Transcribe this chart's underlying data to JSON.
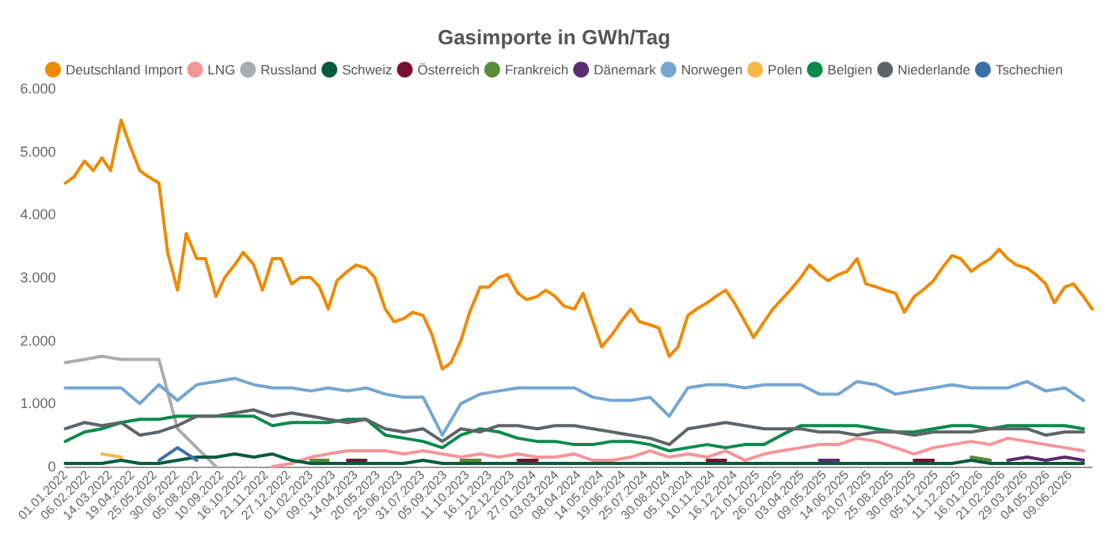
{
  "chart_data": {
    "type": "line",
    "title": "Gasimporte in GWh/Tag",
    "legend": "top",
    "grid": false,
    "marker": "none",
    "line_style": "solid",
    "xlim": [
      "2022-01-01",
      "2026-07-15"
    ],
    "ylim": [
      0,
      6000
    ],
    "yticks": [
      0,
      {
        "value": 1000,
        "label": "1.000"
      },
      {
        "value": 2000,
        "label": "2.000"
      },
      {
        "value": 3000,
        "label": "3.000"
      },
      {
        "value": 4000,
        "label": "4.000"
      },
      {
        "value": 5000,
        "label": "5.000"
      },
      {
        "value": 6000,
        "label": "6.000"
      }
    ],
    "xticks": [
      {
        "value": "2022-01-01",
        "label": "01.01.2022"
      },
      {
        "value": "2022-02-06",
        "label": "06.02.2022"
      },
      {
        "value": "2022-03-14",
        "label": "14.03.2022"
      },
      {
        "value": "2022-04-19",
        "label": "19.04.2022"
      },
      {
        "value": "2022-05-25",
        "label": "25.05.2022"
      },
      {
        "value": "2022-06-30",
        "label": "30.06.2022"
      },
      {
        "value": "2022-08-05",
        "label": "05.08.2022"
      },
      {
        "value": "2022-09-10",
        "label": "10.09.2022"
      },
      {
        "value": "2022-10-16",
        "label": "16.10.2022"
      },
      {
        "value": "2022-11-21",
        "label": "21.11.2022"
      },
      {
        "value": "2022-12-27",
        "label": "27.12.2022"
      },
      {
        "value": "2023-02-01",
        "label": "01.02.2023"
      },
      {
        "value": "2023-03-09",
        "label": "09.03.2023"
      },
      {
        "value": "2023-04-14",
        "label": "14.04.2023"
      },
      {
        "value": "2023-05-20",
        "label": "20.05.2023"
      },
      {
        "value": "2023-06-25",
        "label": "25.06.2023"
      },
      {
        "value": "2023-07-31",
        "label": "31.07.2023"
      },
      {
        "value": "2023-09-05",
        "label": "05.09.2023"
      },
      {
        "value": "2023-10-11",
        "label": "11.10.2023"
      },
      {
        "value": "2023-11-16",
        "label": "16.11.2023"
      },
      {
        "value": "2023-12-22",
        "label": "22.12.2023"
      },
      {
        "value": "2024-01-27",
        "label": "27.01.2024"
      },
      {
        "value": "2024-03-03",
        "label": "03.03.2024"
      },
      {
        "value": "2024-04-08",
        "label": "08.04.2024"
      },
      {
        "value": "2024-05-14",
        "label": "14.05.2024"
      },
      {
        "value": "2024-06-19",
        "label": "19.06.2024"
      },
      {
        "value": "2024-07-25",
        "label": "25.07.2024"
      },
      {
        "value": "2024-08-30",
        "label": "30.08.2024"
      },
      {
        "value": "2024-10-05",
        "label": "05.10.2024"
      },
      {
        "value": "2024-11-10",
        "label": "10.11.2024"
      },
      {
        "value": "2024-12-16",
        "label": "16.12.2024"
      },
      {
        "value": "2025-01-21",
        "label": "21.01.2025"
      },
      {
        "value": "2025-02-26",
        "label": "26.02.2025"
      },
      {
        "value": "2025-04-03",
        "label": "03.04.2025"
      },
      {
        "value": "2025-05-09",
        "label": "09.05.2025"
      },
      {
        "value": "2025-06-14",
        "label": "14.06.2025"
      },
      {
        "value": "2025-07-20",
        "label": "20.07.2025"
      },
      {
        "value": "2025-08-25",
        "label": "25.08.2025"
      },
      {
        "value": "2025-09-30",
        "label": "30.09.2025"
      },
      {
        "value": "2025-11-05",
        "label": "05.11.2025"
      },
      {
        "value": "2025-12-11",
        "label": "11.12.2025"
      },
      {
        "value": "2026-01-16",
        "label": "16.01.2026"
      },
      {
        "value": "2026-02-21",
        "label": "21.02.2026"
      },
      {
        "value": "2026-03-29",
        "label": "29.03.2026"
      },
      {
        "value": "2026-05-04",
        "label": "04.05.2026"
      },
      {
        "value": "2026-06-09",
        "label": "09.06.2026"
      }
    ],
    "x": [
      "2022-01-01",
      "2022-02-01",
      "2022-03-01",
      "2022-04-01",
      "2022-05-01",
      "2022-06-01",
      "2022-07-01",
      "2022-08-01",
      "2022-09-01",
      "2022-10-01",
      "2022-11-01",
      "2022-12-01",
      "2023-01-01",
      "2023-02-01",
      "2023-03-01",
      "2023-04-01",
      "2023-05-01",
      "2023-06-01",
      "2023-07-01",
      "2023-08-01",
      "2023-09-01",
      "2023-10-01",
      "2023-11-01",
      "2023-12-01",
      "2024-01-01",
      "2024-02-01",
      "2024-03-01",
      "2024-04-01",
      "2024-05-01",
      "2024-06-01",
      "2024-07-01",
      "2024-08-01",
      "2024-09-01",
      "2024-10-01",
      "2024-11-01",
      "2024-12-01",
      "2025-01-01",
      "2025-02-01",
      "2025-03-01",
      "2025-04-01",
      "2025-05-01",
      "2025-06-01",
      "2025-07-01",
      "2025-08-01",
      "2025-09-01",
      "2025-10-01",
      "2025-11-01",
      "2025-12-01",
      "2026-01-01",
      "2026-02-01",
      "2026-03-01",
      "2026-04-01",
      "2026-05-01",
      "2026-06-01",
      "2026-07-01"
    ],
    "series": [
      {
        "name": "Deutschland Import",
        "color": "#ef8a00",
        "x": [
          "2022-01-01",
          "2022-01-15",
          "2022-02-01",
          "2022-02-15",
          "2022-03-01",
          "2022-03-15",
          "2022-04-01",
          "2022-04-15",
          "2022-05-01",
          "2022-05-15",
          "2022-06-01",
          "2022-06-15",
          "2022-07-01",
          "2022-07-15",
          "2022-08-01",
          "2022-08-15",
          "2022-09-01",
          "2022-09-15",
          "2022-10-01",
          "2022-10-15",
          "2022-11-01",
          "2022-11-15",
          "2022-12-01",
          "2022-12-15",
          "2023-01-01",
          "2023-01-15",
          "2023-02-01",
          "2023-02-15",
          "2023-03-01",
          "2023-03-15",
          "2023-04-01",
          "2023-04-15",
          "2023-05-01",
          "2023-05-15",
          "2023-06-01",
          "2023-06-15",
          "2023-07-01",
          "2023-07-15",
          "2023-08-01",
          "2023-08-15",
          "2023-09-01",
          "2023-09-15",
          "2023-10-01",
          "2023-10-15",
          "2023-11-01",
          "2023-11-15",
          "2023-12-01",
          "2023-12-15",
          "2024-01-01",
          "2024-01-15",
          "2024-02-01",
          "2024-02-15",
          "2024-03-01",
          "2024-03-15",
          "2024-04-01",
          "2024-04-15",
          "2024-05-01",
          "2024-05-15",
          "2024-06-01",
          "2024-06-15",
          "2024-07-01",
          "2024-07-15",
          "2024-08-01",
          "2024-08-15",
          "2024-09-01",
          "2024-09-15",
          "2024-10-01",
          "2024-10-15",
          "2024-11-01",
          "2024-11-15",
          "2024-12-01",
          "2024-12-15",
          "2025-01-01",
          "2025-01-15",
          "2025-02-01",
          "2025-02-15",
          "2025-03-01",
          "2025-03-15",
          "2025-04-01",
          "2025-04-15",
          "2025-05-01",
          "2025-05-15",
          "2025-06-01",
          "2025-06-15",
          "2025-07-01",
          "2025-07-15",
          "2025-08-01",
          "2025-08-15",
          "2025-09-01",
          "2025-09-15",
          "2025-10-01",
          "2025-10-15",
          "2025-11-01",
          "2025-11-15",
          "2025-12-01",
          "2025-12-15",
          "2026-01-01",
          "2026-01-15",
          "2026-02-01",
          "2026-02-15",
          "2026-03-01",
          "2026-03-15",
          "2026-04-01",
          "2026-04-15",
          "2026-05-01",
          "2026-05-15",
          "2026-06-01",
          "2026-06-15",
          "2026-07-01",
          "2026-07-15"
        ],
        "values": [
          4500,
          4600,
          4850,
          4700,
          4900,
          4700,
          5500,
          5100,
          4700,
          4600,
          4500,
          3400,
          2800,
          3700,
          3300,
          3300,
          2700,
          3000,
          3200,
          3400,
          3200,
          2800,
          3300,
          3300,
          2900,
          3000,
          3000,
          2850,
          2500,
          2950,
          3100,
          3200,
          3150,
          3000,
          2500,
          2300,
          2350,
          2450,
          2400,
          2100,
          1550,
          1650,
          2000,
          2450,
          2850,
          2850,
          3000,
          3050,
          2750,
          2650,
          2700,
          2800,
          2700,
          2550,
          2500,
          2750,
          2300,
          1900,
          2100,
          2300,
          2500,
          2300,
          2250,
          2200,
          1750,
          1900,
          2400,
          2500,
          2600,
          2700,
          2800,
          2600,
          2300,
          2050,
          2300,
          2500,
          2650,
          2800,
          3000,
          3200,
          3050,
          2950,
          3050,
          3100,
          3300,
          2900,
          2850,
          2800,
          2750,
          2450,
          2700,
          2800,
          2950,
          3150,
          3350,
          3300,
          3100,
          3200,
          3300,
          3450,
          3300,
          3200,
          3150,
          3050,
          2900,
          2600,
          2850,
          2900,
          2700,
          2500
        ]
      },
      {
        "name": "LNG",
        "color": "#f4959a",
        "values": [
          null,
          null,
          null,
          null,
          null,
          null,
          null,
          null,
          null,
          null,
          null,
          0,
          50,
          150,
          200,
          250,
          250,
          250,
          200,
          250,
          200,
          150,
          200,
          150,
          200,
          150,
          150,
          200,
          100,
          100,
          150,
          250,
          150,
          200,
          150,
          250,
          100,
          200,
          250,
          300,
          350,
          350,
          450,
          400,
          300,
          200,
          300,
          350,
          400,
          350,
          450,
          400,
          350,
          300,
          250
        ]
      },
      {
        "name": "Russland",
        "color": "#a9adb0",
        "values": [
          1650,
          1700,
          1750,
          1700,
          1700,
          1700,
          600,
          300,
          0,
          null,
          null,
          null,
          null,
          null,
          null,
          null,
          null,
          null,
          null,
          null,
          null,
          null,
          null,
          null,
          null,
          null,
          null,
          null,
          null,
          null,
          null,
          null,
          null,
          null,
          null,
          null,
          null,
          null,
          null,
          null,
          null,
          null,
          null,
          null,
          null,
          null,
          null,
          null,
          null,
          null,
          null,
          null,
          null,
          null,
          null
        ]
      },
      {
        "name": "Schweiz",
        "color": "#005c3c",
        "values": [
          50,
          50,
          50,
          100,
          50,
          50,
          100,
          150,
          150,
          200,
          150,
          200,
          100,
          50,
          50,
          50,
          50,
          50,
          50,
          100,
          50,
          50,
          50,
          50,
          50,
          50,
          50,
          50,
          50,
          50,
          50,
          50,
          50,
          50,
          50,
          50,
          50,
          50,
          50,
          50,
          50,
          50,
          50,
          50,
          50,
          50,
          50,
          50,
          100,
          50,
          50,
          50,
          50,
          50,
          50
        ]
      },
      {
        "name": "Österreich",
        "color": "#7a1032",
        "values": [
          null,
          null,
          null,
          null,
          null,
          null,
          null,
          null,
          null,
          null,
          null,
          null,
          null,
          null,
          null,
          100,
          100,
          null,
          null,
          null,
          null,
          null,
          null,
          null,
          100,
          100,
          null,
          null,
          null,
          null,
          null,
          null,
          null,
          null,
          100,
          100,
          null,
          null,
          null,
          null,
          null,
          null,
          null,
          null,
          null,
          100,
          100,
          null,
          null,
          null,
          null,
          null,
          null,
          null,
          null
        ]
      },
      {
        "name": "Frankreich",
        "color": "#5a8a36",
        "values": [
          null,
          null,
          null,
          null,
          null,
          null,
          null,
          null,
          null,
          null,
          null,
          null,
          null,
          100,
          100,
          null,
          null,
          null,
          null,
          null,
          null,
          100,
          100,
          null,
          null,
          null,
          null,
          null,
          null,
          null,
          null,
          null,
          null,
          null,
          null,
          null,
          null,
          null,
          null,
          null,
          null,
          null,
          null,
          null,
          null,
          null,
          null,
          null,
          150,
          100,
          null,
          null,
          null,
          null,
          null
        ]
      },
      {
        "name": "Dänemark",
        "color": "#5b2c72",
        "values": [
          null,
          null,
          null,
          null,
          null,
          null,
          null,
          null,
          null,
          null,
          null,
          null,
          null,
          null,
          null,
          null,
          null,
          null,
          null,
          null,
          null,
          null,
          null,
          null,
          null,
          null,
          null,
          null,
          null,
          null,
          null,
          null,
          null,
          null,
          null,
          null,
          null,
          null,
          null,
          null,
          100,
          100,
          null,
          null,
          null,
          null,
          null,
          null,
          null,
          null,
          100,
          150,
          100,
          150,
          100
        ]
      },
      {
        "name": "Norwegen",
        "color": "#74a6d1",
        "values": [
          1250,
          1250,
          1250,
          1250,
          1000,
          1300,
          1050,
          1300,
          1350,
          1400,
          1300,
          1250,
          1250,
          1200,
          1250,
          1200,
          1250,
          1150,
          1100,
          1100,
          500,
          1000,
          1150,
          1200,
          1250,
          1250,
          1250,
          1250,
          1100,
          1050,
          1050,
          1100,
          800,
          1250,
          1300,
          1300,
          1250,
          1300,
          1300,
          1300,
          1150,
          1150,
          1350,
          1300,
          1150,
          1200,
          1250,
          1300,
          1250,
          1250,
          1250,
          1350,
          1200,
          1250,
          1050
        ]
      },
      {
        "name": "Polen",
        "color": "#f4b942",
        "values": [
          null,
          null,
          200,
          150,
          null,
          null,
          null,
          null,
          null,
          null,
          null,
          null,
          null,
          null,
          null,
          null,
          null,
          null,
          null,
          null,
          null,
          null,
          null,
          null,
          null,
          null,
          null,
          null,
          null,
          null,
          null,
          null,
          null,
          null,
          null,
          null,
          null,
          null,
          null,
          null,
          null,
          null,
          null,
          null,
          null,
          null,
          null,
          null,
          null,
          null,
          null,
          null,
          null,
          null,
          null
        ]
      },
      {
        "name": "Belgien",
        "color": "#0a8a4c",
        "values": [
          400,
          550,
          600,
          700,
          750,
          750,
          800,
          800,
          800,
          800,
          800,
          650,
          700,
          700,
          700,
          750,
          750,
          500,
          450,
          400,
          300,
          500,
          600,
          550,
          450,
          400,
          400,
          350,
          350,
          400,
          400,
          350,
          250,
          300,
          350,
          300,
          350,
          350,
          500,
          650,
          650,
          650,
          650,
          600,
          550,
          550,
          600,
          650,
          650,
          600,
          650,
          650,
          650,
          650,
          600
        ]
      },
      {
        "name": "Niederlande",
        "color": "#5e6468",
        "values": [
          600,
          700,
          650,
          700,
          500,
          550,
          650,
          800,
          800,
          850,
          900,
          800,
          850,
          800,
          750,
          700,
          750,
          600,
          550,
          600,
          400,
          600,
          550,
          650,
          650,
          600,
          650,
          650,
          600,
          550,
          500,
          450,
          350,
          600,
          650,
          700,
          650,
          600,
          600,
          600,
          550,
          550,
          500,
          550,
          550,
          500,
          550,
          550,
          550,
          600,
          600,
          600,
          500,
          550,
          550
        ]
      },
      {
        "name": "Tschechien",
        "color": "#3b6ea5",
        "values": [
          null,
          null,
          null,
          null,
          null,
          100,
          300,
          100,
          null,
          null,
          null,
          null,
          null,
          null,
          null,
          null,
          null,
          null,
          null,
          null,
          null,
          null,
          null,
          null,
          null,
          null,
          null,
          null,
          null,
          null,
          null,
          null,
          null,
          null,
          null,
          null,
          null,
          null,
          null,
          null,
          null,
          null,
          null,
          null,
          null,
          null,
          null,
          null,
          null,
          null,
          null,
          null,
          null,
          null,
          null
        ]
      }
    ]
  }
}
